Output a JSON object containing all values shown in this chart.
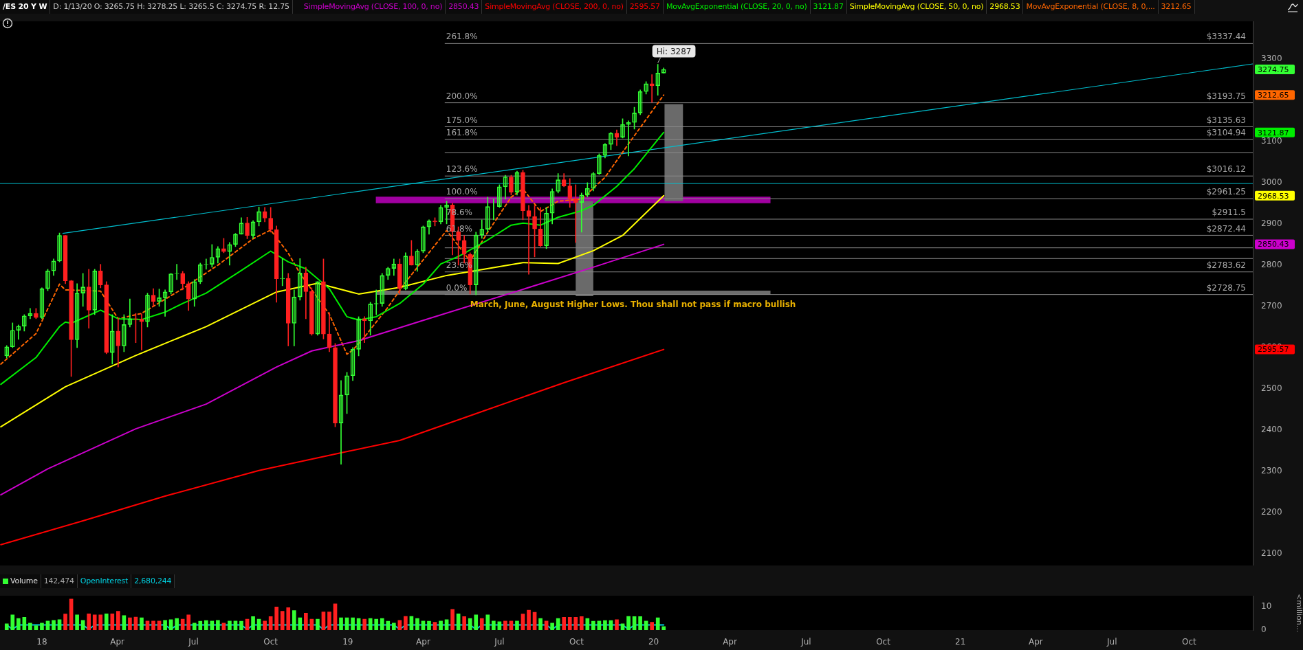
{
  "chart_data": [
    {
      "type": "candlestick",
      "title": "/ES 20 Y W",
      "subtitle": "D: 1/13/20   O: 3265.75   H: 3278.25   L: 3265.5   C: 3274.75   R: 12.75",
      "x": [
        "2017-11-20",
        "2017-11-27",
        "2017-12-04",
        "2017-12-11",
        "2017-12-18",
        "2017-12-25",
        "2018-01-01",
        "2018-01-08",
        "2018-01-15",
        "2018-01-22",
        "2018-01-29",
        "2018-02-05",
        "2018-02-12",
        "2018-02-19",
        "2018-02-26",
        "2018-03-05",
        "2018-03-12",
        "2018-03-19",
        "2018-03-26",
        "2018-04-02",
        "2018-04-09",
        "2018-04-16",
        "2018-04-23",
        "2018-04-30",
        "2018-05-07",
        "2018-05-14",
        "2018-05-21",
        "2018-05-28",
        "2018-06-04",
        "2018-06-11",
        "2018-06-18",
        "2018-06-25",
        "2018-07-02",
        "2018-07-09",
        "2018-07-16",
        "2018-07-23",
        "2018-07-30",
        "2018-08-06",
        "2018-08-13",
        "2018-08-20",
        "2018-08-27",
        "2018-09-03",
        "2018-09-10",
        "2018-09-17",
        "2018-09-24",
        "2018-10-01",
        "2018-10-08",
        "2018-10-15",
        "2018-10-22",
        "2018-10-29",
        "2018-11-05",
        "2018-11-12",
        "2018-11-19",
        "2018-11-26",
        "2018-12-03",
        "2018-12-10",
        "2018-12-17",
        "2018-12-24",
        "2018-12-31",
        "2019-01-07",
        "2019-01-14",
        "2019-01-21",
        "2019-01-28",
        "2019-02-04",
        "2019-02-11",
        "2019-02-18",
        "2019-02-25",
        "2019-03-04",
        "2019-03-11",
        "2019-03-18",
        "2019-03-25",
        "2019-04-01",
        "2019-04-08",
        "2019-04-15",
        "2019-04-22",
        "2019-04-29",
        "2019-05-06",
        "2019-05-13",
        "2019-05-20",
        "2019-05-27",
        "2019-06-03",
        "2019-06-10",
        "2019-06-17",
        "2019-06-24",
        "2019-07-01",
        "2019-07-08",
        "2019-07-15",
        "2019-07-22",
        "2019-07-29",
        "2019-08-05",
        "2019-08-12",
        "2019-08-19",
        "2019-08-26",
        "2019-09-02",
        "2019-09-09",
        "2019-09-16",
        "2019-09-23",
        "2019-09-30",
        "2019-10-07",
        "2019-10-14",
        "2019-10-21",
        "2019-10-28",
        "2019-11-04",
        "2019-11-11",
        "2019-11-18",
        "2019-11-25",
        "2019-12-02",
        "2019-12-09",
        "2019-12-16",
        "2019-12-23",
        "2019-12-30",
        "2020-01-06",
        "2020-01-13"
      ],
      "ohlc": [
        [
          2580,
          2605,
          2575,
          2602
        ],
        [
          2602,
          2660,
          2600,
          2642
        ],
        [
          2642,
          2655,
          2620,
          2652
        ],
        [
          2652,
          2680,
          2640,
          2677
        ],
        [
          2677,
          2695,
          2670,
          2683
        ],
        [
          2683,
          2695,
          2670,
          2673
        ],
        [
          2673,
          2745,
          2670,
          2743
        ],
        [
          2743,
          2790,
          2738,
          2786
        ],
        [
          2786,
          2815,
          2775,
          2810
        ],
        [
          2810,
          2878,
          2808,
          2872
        ],
        [
          2872,
          2872,
          2755,
          2762
        ],
        [
          2762,
          2763,
          2530,
          2619
        ],
        [
          2619,
          2755,
          2600,
          2732
        ],
        [
          2732,
          2780,
          2700,
          2747
        ],
        [
          2747,
          2790,
          2647,
          2691
        ],
        [
          2691,
          2790,
          2680,
          2786
        ],
        [
          2786,
          2802,
          2745,
          2752
        ],
        [
          2752,
          2760,
          2585,
          2588
        ],
        [
          2588,
          2680,
          2560,
          2640
        ],
        [
          2640,
          2672,
          2553,
          2604
        ],
        [
          2604,
          2680,
          2590,
          2656
        ],
        [
          2656,
          2718,
          2650,
          2670
        ],
        [
          2670,
          2683,
          2612,
          2669
        ],
        [
          2669,
          2682,
          2594,
          2663
        ],
        [
          2663,
          2732,
          2650,
          2727
        ],
        [
          2727,
          2743,
          2700,
          2712
        ],
        [
          2712,
          2742,
          2700,
          2721
        ],
        [
          2721,
          2740,
          2676,
          2735
        ],
        [
          2735,
          2780,
          2730,
          2779
        ],
        [
          2779,
          2802,
          2765,
          2780
        ],
        [
          2780,
          2785,
          2740,
          2755
        ],
        [
          2755,
          2760,
          2690,
          2718
        ],
        [
          2718,
          2765,
          2700,
          2760
        ],
        [
          2760,
          2805,
          2755,
          2801
        ],
        [
          2801,
          2815,
          2790,
          2802
        ],
        [
          2802,
          2850,
          2795,
          2819
        ],
        [
          2819,
          2845,
          2805,
          2840
        ],
        [
          2840,
          2865,
          2830,
          2833
        ],
        [
          2833,
          2855,
          2800,
          2850
        ],
        [
          2850,
          2877,
          2845,
          2875
        ],
        [
          2875,
          2915,
          2875,
          2902
        ],
        [
          2902,
          2916,
          2864,
          2872
        ],
        [
          2872,
          2908,
          2865,
          2905
        ],
        [
          2905,
          2941,
          2895,
          2930
        ],
        [
          2930,
          2940,
          2905,
          2914
        ],
        [
          2914,
          2940,
          2880,
          2886
        ],
        [
          2886,
          2895,
          2710,
          2767
        ],
        [
          2767,
          2816,
          2750,
          2768
        ],
        [
          2768,
          2780,
          2604,
          2659
        ],
        [
          2659,
          2740,
          2604,
          2723
        ],
        [
          2723,
          2816,
          2715,
          2781
        ],
        [
          2781,
          2795,
          2670,
          2736
        ],
        [
          2736,
          2745,
          2630,
          2633
        ],
        [
          2633,
          2760,
          2630,
          2760
        ],
        [
          2760,
          2815,
          2621,
          2633
        ],
        [
          2633,
          2685,
          2590,
          2600
        ],
        [
          2600,
          2610,
          2408,
          2417
        ],
        [
          2417,
          2520,
          2317,
          2485
        ],
        [
          2485,
          2540,
          2440,
          2532
        ],
        [
          2532,
          2600,
          2520,
          2596
        ],
        [
          2596,
          2675,
          2580,
          2670
        ],
        [
          2670,
          2675,
          2612,
          2665
        ],
        [
          2665,
          2710,
          2630,
          2706
        ],
        [
          2706,
          2740,
          2680,
          2707
        ],
        [
          2707,
          2780,
          2700,
          2775
        ],
        [
          2775,
          2795,
          2765,
          2792
        ],
        [
          2792,
          2815,
          2775,
          2803
        ],
        [
          2803,
          2815,
          2730,
          2743
        ],
        [
          2743,
          2830,
          2740,
          2822
        ],
        [
          2822,
          2860,
          2800,
          2800
        ],
        [
          2800,
          2838,
          2785,
          2834
        ],
        [
          2834,
          2895,
          2830,
          2893
        ],
        [
          2893,
          2910,
          2875,
          2907
        ],
        [
          2907,
          2915,
          2895,
          2905
        ],
        [
          2905,
          2945,
          2900,
          2940
        ],
        [
          2940,
          2955,
          2900,
          2946
        ],
        [
          2946,
          2950,
          2825,
          2881
        ],
        [
          2881,
          2893,
          2800,
          2860
        ],
        [
          2860,
          2872,
          2805,
          2826
        ],
        [
          2826,
          2830,
          2730,
          2752
        ],
        [
          2752,
          2880,
          2728,
          2873
        ],
        [
          2873,
          2910,
          2865,
          2887
        ],
        [
          2887,
          2965,
          2880,
          2942
        ],
        [
          2942,
          2960,
          2910,
          2942
        ],
        [
          2942,
          2995,
          2940,
          2990
        ],
        [
          2990,
          3018,
          2960,
          3014
        ],
        [
          3014,
          3018,
          2970,
          2977
        ],
        [
          2977,
          3028,
          2970,
          3025
        ],
        [
          3025,
          3030,
          2910,
          2932
        ],
        [
          2932,
          2945,
          2778,
          2918
        ],
        [
          2918,
          2945,
          2820,
          2888
        ],
        [
          2888,
          2940,
          2845,
          2847
        ],
        [
          2847,
          2940,
          2840,
          2926
        ],
        [
          2926,
          2985,
          2900,
          2979
        ],
        [
          2979,
          3022,
          2975,
          3007
        ],
        [
          3007,
          3022,
          2990,
          2992
        ],
        [
          2992,
          3010,
          2940,
          2961
        ],
        [
          2961,
          2995,
          2855,
          2952
        ],
        [
          2952,
          2975,
          2880,
          2970
        ],
        [
          2970,
          3000,
          2965,
          2986
        ],
        [
          2986,
          3025,
          2980,
          3022
        ],
        [
          3022,
          3070,
          3020,
          3066
        ],
        [
          3066,
          3095,
          3060,
          3093
        ],
        [
          3093,
          3122,
          3080,
          3120
        ],
        [
          3120,
          3128,
          3090,
          3110
        ],
        [
          3110,
          3155,
          3108,
          3141
        ],
        [
          3141,
          3150,
          3065,
          3146
        ],
        [
          3146,
          3183,
          3130,
          3169
        ],
        [
          3169,
          3225,
          3165,
          3221
        ],
        [
          3221,
          3245,
          3215,
          3240
        ],
        [
          3240,
          3262,
          3195,
          3235
        ],
        [
          3235,
          3287,
          3212,
          3266
        ],
        [
          3265.75,
          3278.25,
          3265.5,
          3274.75
        ]
      ],
      "colors": [
        "#33ff33",
        "#33ff33",
        "#33ff33",
        "#33ff33",
        "#33ff33",
        "#ff2020",
        "#33ff33",
        "#33ff33",
        "#33ff33",
        "#33ff33",
        "#ff2020",
        "#ff2020",
        "#33ff33",
        "#33ff33",
        "#ff2020",
        "#33ff33",
        "#ff2020",
        "#ff2020",
        "#33ff33",
        "#ff2020",
        "#33ff33",
        "#33ff33",
        "#ff2020",
        "#ff2020",
        "#33ff33",
        "#ff2020",
        "#33ff33",
        "#33ff33",
        "#33ff33",
        "#33ff33",
        "#ff2020",
        "#ff2020",
        "#33ff33",
        "#33ff33",
        "#33ff33",
        "#33ff33",
        "#33ff33",
        "#ff2020",
        "#33ff33",
        "#33ff33",
        "#33ff33",
        "#ff2020",
        "#33ff33",
        "#33ff33",
        "#ff2020",
        "#ff2020",
        "#ff2020",
        "#33ff33",
        "#ff2020",
        "#33ff33",
        "#33ff33",
        "#ff2020",
        "#ff2020",
        "#33ff33",
        "#ff2020",
        "#ff2020",
        "#ff2020",
        "#33ff33",
        "#33ff33",
        "#33ff33",
        "#33ff33",
        "#ff2020",
        "#33ff33",
        "#33ff33",
        "#33ff33",
        "#33ff33",
        "#33ff33",
        "#ff2020",
        "#33ff33",
        "#ff2020",
        "#33ff33",
        "#33ff33",
        "#33ff33",
        "#ff2020",
        "#33ff33",
        "#33ff33",
        "#ff2020",
        "#ff2020",
        "#ff2020",
        "#ff2020",
        "#33ff33",
        "#33ff33",
        "#33ff33",
        "#33ff33",
        "#33ff33",
        "#33ff33",
        "#ff2020",
        "#33ff33",
        "#ff2020",
        "#ff2020",
        "#ff2020",
        "#ff2020",
        "#33ff33",
        "#33ff33",
        "#33ff33",
        "#ff2020",
        "#ff2020",
        "#ff2020",
        "#33ff33",
        "#33ff33",
        "#33ff33",
        "#33ff33",
        "#33ff33",
        "#33ff33",
        "#ff2020",
        "#33ff33",
        "#33ff33",
        "#33ff33",
        "#33ff33",
        "#33ff33",
        "#ff2020",
        "#33ff33",
        "#33ff33"
      ],
      "series": [
        {
          "name": "SimpleMovingAvg (CLOSE, 100, 0, no)",
          "type": "line",
          "color": "#cc00cc",
          "x": [
            "2017-11-13",
            "2018-01-08",
            "2018-04-23",
            "2018-07-16",
            "2018-10-08",
            "2018-11-19",
            "2019-01-14",
            "2019-04-01",
            "2019-07-08",
            "2019-10-21",
            "2020-01-13"
          ],
          "values": [
            2243,
            2306,
            2403,
            2463,
            2553,
            2592,
            2617,
            2666,
            2728,
            2795,
            2850.43
          ]
        },
        {
          "name": "SimpleMovingAvg (CLOSE, 200, 0, no)",
          "type": "line",
          "color": "#ff0000",
          "x": [
            "2017-11-13",
            "2018-02-19",
            "2018-05-28",
            "2018-09-17",
            "2018-12-24",
            "2019-03-04",
            "2019-06-03",
            "2019-09-16",
            "2020-01-13"
          ],
          "values": [
            2122,
            2180,
            2240,
            2302,
            2345,
            2375,
            2440,
            2515,
            2595.57
          ]
        },
        {
          "name": "MovAvgExponential (CLOSE, 20, 0, no)",
          "type": "line",
          "color": "#00ee00",
          "x": [
            "2017-11-13",
            "2017-12-25",
            "2018-01-22",
            "2018-01-29",
            "2018-02-05",
            "2018-03-12",
            "2018-04-02",
            "2018-04-30",
            "2018-05-28",
            "2018-06-18",
            "2018-07-16",
            "2018-08-27",
            "2018-10-01",
            "2018-10-22",
            "2018-11-12",
            "2018-12-10",
            "2018-12-31",
            "2019-01-14",
            "2019-02-04",
            "2019-03-04",
            "2019-04-01",
            "2019-04-22",
            "2019-05-13",
            "2019-06-17",
            "2019-07-15",
            "2019-07-29",
            "2019-08-19",
            "2019-09-09",
            "2019-10-07",
            "2019-10-21",
            "2019-11-18",
            "2019-12-09",
            "2020-01-13"
          ],
          "values": [
            2511,
            2576,
            2651,
            2662,
            2659,
            2691,
            2670,
            2668,
            2686,
            2707,
            2732,
            2787,
            2834,
            2808,
            2791,
            2743,
            2675,
            2667,
            2675,
            2707,
            2754,
            2803,
            2821,
            2861,
            2897,
            2902,
            2897,
            2916,
            2932,
            2945,
            2991,
            3034,
            3121.87
          ]
        },
        {
          "name": "SimpleMovingAvg (CLOSE, 50, 0, no)",
          "type": "line",
          "color": "#ffff00",
          "x": [
            "2017-11-13",
            "2018-01-29",
            "2018-04-23",
            "2018-07-16",
            "2018-10-08",
            "2018-11-26",
            "2019-01-14",
            "2019-03-04",
            "2019-04-29",
            "2019-07-29",
            "2019-09-09",
            "2019-10-21",
            "2019-11-25",
            "2020-01-13"
          ],
          "values": [
            2408,
            2505,
            2581,
            2651,
            2735,
            2756,
            2730,
            2746,
            2775,
            2806,
            2804,
            2835,
            2872,
            2968.53
          ]
        },
        {
          "name": "MovAvgExponential (CLOSE, 8, 0,...",
          "type": "line",
          "color": "#ff6600",
          "line_style": "dashed",
          "x": [
            "2017-11-13",
            "2017-12-25",
            "2018-01-22",
            "2018-01-29",
            "2018-03-12",
            "2018-04-02",
            "2018-04-30",
            "2018-06-18",
            "2018-07-30",
            "2018-09-10",
            "2018-10-01",
            "2018-10-22",
            "2018-11-05",
            "2018-12-10",
            "2018-12-31",
            "2019-01-07",
            "2019-01-21",
            "2019-02-18",
            "2019-03-11",
            "2019-04-29",
            "2019-05-27",
            "2019-06-17",
            "2019-07-15",
            "2019-07-29",
            "2019-08-19",
            "2019-09-09",
            "2019-10-07",
            "2019-11-04",
            "2019-12-02",
            "2020-01-13"
          ],
          "values": [
            2560,
            2634,
            2754,
            2740,
            2737,
            2670,
            2683,
            2743,
            2800,
            2864,
            2885,
            2829,
            2780,
            2681,
            2584,
            2594,
            2626,
            2698,
            2759,
            2884,
            2810,
            2880,
            2965,
            2985,
            2930,
            2955,
            2960,
            3013,
            3094,
            3212.65
          ]
        },
        {
          "type": "line",
          "color": "#00c0d0",
          "x": [
            "2018-01-26",
            "2021-12-16"
          ],
          "values": [
            2877,
            3288
          ]
        }
      ],
      "ref_lines": [
        {
          "axis": "y",
          "value": 3337.44,
          "label": "$3337.44"
        },
        {
          "axis": "y",
          "value": 3193.75,
          "label": "$3193.75"
        },
        {
          "axis": "y",
          "value": 3135.63,
          "label": "$3135.63"
        },
        {
          "axis": "y",
          "value": 3104.94,
          "label": "$3104.94"
        },
        {
          "axis": "y",
          "value": 3073
        },
        {
          "axis": "y",
          "value": 3016.12,
          "label": "$3016.12"
        },
        {
          "axis": "y",
          "value": 2961.25,
          "label": "$2961.25"
        },
        {
          "axis": "y",
          "value": 2911.5,
          "label": "$2911.5"
        },
        {
          "axis": "y",
          "value": 2872.44,
          "label": "$2872.44"
        },
        {
          "axis": "y",
          "value": 2842
        },
        {
          "axis": "y",
          "value": 2816
        },
        {
          "axis": "y",
          "value": 2783.62,
          "label": "$2783.62"
        },
        {
          "axis": "y",
          "value": 2728.75,
          "label": "$2728.75"
        },
        {
          "axis": "y",
          "value": 2998,
          "color": "#00c0d0"
        }
      ],
      "bands": [
        {
          "axis": "y",
          "from": 2950,
          "to": 2966,
          "color": "#a000a0"
        },
        {
          "axis": "y",
          "from": 2728,
          "to": 2738,
          "color": "#6e6e6e"
        },
        {
          "axis": "x",
          "from": "2019-09-30",
          "to": "2019-10-21",
          "color": "#6a6a6a"
        },
        {
          "axis": "x",
          "from": "2020-01-14",
          "to": "2020-02-05",
          "color": "#6a6a6a"
        }
      ],
      "annotations": [
        "3274.75",
        "2850.43",
        "2595.57",
        "3121.87",
        "2968.53",
        "3212.65",
        {
          "text": "March, June, August Higher Lows. Thou shall not pass if macro bullish",
          "x": "2019-05-27",
          "y": 2703
        },
        {
          "text": "Hi: 3287",
          "x": "2020-01-06",
          "y": 3287
        },
        {
          "text": "261.8%",
          "y": 3337.44
        },
        {
          "text": "200.0%",
          "y": 3193.75
        },
        {
          "text": "175.0%",
          "y": 3135.63
        },
        {
          "text": "161.8%",
          "y": 3104.94
        },
        {
          "text": "123.6%",
          "y": 3016.12
        },
        {
          "text": "100.0%",
          "y": 2961.25
        },
        {
          "text": "78.6%",
          "y": 2911.5
        },
        {
          "text": "61.8%",
          "y": 2872.44
        },
        {
          "text": "23.6%",
          "y": 2783.62
        },
        {
          "text": "0.0%",
          "y": 2728.75
        }
      ],
      "xlim": [
        "2017-11-12",
        "2021-12-16"
      ],
      "ylim": [
        2072,
        3391
      ],
      "yticks": [
        2100,
        2200,
        2300,
        2400,
        2500,
        2600,
        2700,
        2800,
        2900,
        3000,
        3100,
        3300
      ],
      "tick_labels": "y",
      "legend": "top right",
      "marker": "none"
    },
    {
      "type": "bar",
      "ylabel": "<million...",
      "x": [
        "2017-11-20",
        "2017-11-27",
        "2017-12-04",
        "2017-12-11",
        "2017-12-18",
        "2017-12-25",
        "2018-01-01",
        "2018-01-08",
        "2018-01-15",
        "2018-01-22",
        "2018-01-29",
        "2018-02-05",
        "2018-02-12",
        "2018-02-19",
        "2018-02-26",
        "2018-03-05",
        "2018-03-12",
        "2018-03-19",
        "2018-03-26",
        "2018-04-02",
        "2018-04-09",
        "2018-04-16",
        "2018-04-23",
        "2018-04-30",
        "2018-05-07",
        "2018-05-14",
        "2018-05-21",
        "2018-05-28",
        "2018-06-04",
        "2018-06-11",
        "2018-06-18",
        "2018-06-25",
        "2018-07-02",
        "2018-07-09",
        "2018-07-16",
        "2018-07-23",
        "2018-07-30",
        "2018-08-06",
        "2018-08-13",
        "2018-08-20",
        "2018-08-27",
        "2018-09-03",
        "2018-09-10",
        "2018-09-17",
        "2018-09-24",
        "2018-10-01",
        "2018-10-08",
        "2018-10-15",
        "2018-10-22",
        "2018-10-29",
        "2018-11-05",
        "2018-11-12",
        "2018-11-19",
        "2018-11-26",
        "2018-12-03",
        "2018-12-10",
        "2018-12-17",
        "2018-12-24",
        "2018-12-31",
        "2019-01-07",
        "2019-01-14",
        "2019-01-21",
        "2019-01-28",
        "2019-02-04",
        "2019-02-11",
        "2019-02-18",
        "2019-02-25",
        "2019-03-04",
        "2019-03-11",
        "2019-03-18",
        "2019-03-25",
        "2019-04-01",
        "2019-04-08",
        "2019-04-15",
        "2019-04-22",
        "2019-04-29",
        "2019-05-06",
        "2019-05-13",
        "2019-05-20",
        "2019-05-27",
        "2019-06-03",
        "2019-06-10",
        "2019-06-17",
        "2019-06-24",
        "2019-07-01",
        "2019-07-08",
        "2019-07-15",
        "2019-07-22",
        "2019-07-29",
        "2019-08-05",
        "2019-08-12",
        "2019-08-19",
        "2019-08-26",
        "2019-09-02",
        "2019-09-09",
        "2019-09-16",
        "2019-09-23",
        "2019-09-30",
        "2019-10-07",
        "2019-10-14",
        "2019-10-21",
        "2019-10-28",
        "2019-11-04",
        "2019-11-11",
        "2019-11-18",
        "2019-11-25",
        "2019-12-02",
        "2019-12-09",
        "2019-12-16",
        "2019-12-23",
        "2019-12-30",
        "2020-01-06",
        "2020-01-13"
      ],
      "series": [
        {
          "name": "Volume",
          "values": [
            2.7,
            6.6,
            5.0,
            5.5,
            3.0,
            1.9,
            3.0,
            3.9,
            4.2,
            4.5,
            6.9,
            13.4,
            6.6,
            4.2,
            7.0,
            6.6,
            6.6,
            7.0,
            7.0,
            8.1,
            6.3,
            5.3,
            5.6,
            5.3,
            3.9,
            3.9,
            3.9,
            4.2,
            4.5,
            5.0,
            4.7,
            6.6,
            3.0,
            3.8,
            4.1,
            3.9,
            4.2,
            3.0,
            3.9,
            3.9,
            3.8,
            4.7,
            5.8,
            4.7,
            3.9,
            5.8,
            10.0,
            8.1,
            9.7,
            8.4,
            5.3,
            7.3,
            4.7,
            4.7,
            7.8,
            7.8,
            11.3,
            5.3,
            5.3,
            5.3,
            5.0,
            4.7,
            5.0,
            4.7,
            5.0,
            3.8,
            3.0,
            4.2,
            5.9,
            5.9,
            5.0,
            3.9,
            3.8,
            3.4,
            3.9,
            4.5,
            8.9,
            7.0,
            5.8,
            5.0,
            6.6,
            5.0,
            6.6,
            3.9,
            3.6,
            3.9,
            3.9,
            3.9,
            6.9,
            8.6,
            7.7,
            5.0,
            3.9,
            3.0,
            5.0,
            5.5,
            5.5,
            5.5,
            5.8,
            5.0,
            3.8,
            3.9,
            4.1,
            4.1,
            4.5,
            2.7,
            5.9,
            5.8,
            5.8,
            3.9,
            3.4,
            5.3,
            1.5
          ],
          "colors": [
            "#33ff33",
            "#33ff33",
            "#33ff33",
            "#33ff33",
            "#33ff33",
            "#33ff33",
            "#33ff33",
            "#33ff33",
            "#33ff33",
            "#33ff33",
            "#ff2020",
            "#ff2020",
            "#33ff33",
            "#33ff33",
            "#ff2020",
            "#ff2020",
            "#ff2020",
            "#33ff33",
            "#ff2020",
            "#ff2020",
            "#33ff33",
            "#ff2020",
            "#ff2020",
            "#33ff33",
            "#ff2020",
            "#ff2020",
            "#ff2020",
            "#33ff33",
            "#33ff33",
            "#33ff33",
            "#ff2020",
            "#ff2020",
            "#33ff33",
            "#33ff33",
            "#33ff33",
            "#33ff33",
            "#33ff33",
            "#ff2020",
            "#33ff33",
            "#33ff33",
            "#33ff33",
            "#ff2020",
            "#33ff33",
            "#33ff33",
            "#ff2020",
            "#ff2020",
            "#ff2020",
            "#ff2020",
            "#ff2020",
            "#33ff33",
            "#33ff33",
            "#ff2020",
            "#ff2020",
            "#33ff33",
            "#ff2020",
            "#ff2020",
            "#ff2020",
            "#33ff33",
            "#33ff33",
            "#33ff33",
            "#33ff33",
            "#ff2020",
            "#33ff33",
            "#33ff33",
            "#33ff33",
            "#33ff33",
            "#33ff33",
            "#ff2020",
            "#ff2020",
            "#33ff33",
            "#33ff33",
            "#33ff33",
            "#33ff33",
            "#ff2020",
            "#33ff33",
            "#33ff33",
            "#ff2020",
            "#33ff33",
            "#ff2020",
            "#33ff33",
            "#33ff33",
            "#ff2020",
            "#33ff33",
            "#33ff33",
            "#33ff33",
            "#ff2020",
            "#ff2020",
            "#33ff33",
            "#ff2020",
            "#ff2020",
            "#ff2020",
            "#33ff33",
            "#ff2020",
            "#33ff33",
            "#33ff33",
            "#ff2020",
            "#ff2020",
            "#ff2020",
            "#ff2020",
            "#33ff33",
            "#33ff33",
            "#33ff33",
            "#33ff33",
            "#33ff33",
            "#ff2020",
            "#33ff33",
            "#33ff33",
            "#33ff33",
            "#33ff33",
            "#33ff33",
            "#ff2020",
            "#33ff33",
            "#33ff33"
          ]
        },
        {
          "name": "OpenInterest",
          "type": "line",
          "color": "#00d0e0",
          "values": [
            2.2,
            0.3,
            2.2,
            2.2,
            2.2,
            2.2,
            2.2,
            2.2,
            2.2,
            2.2,
            2.2,
            2.2,
            2.2,
            2.2,
            0.3,
            2.2,
            2.2,
            2.2,
            2.2,
            2.2,
            2.2,
            2.2,
            2.2,
            2.2,
            2.2,
            2.2,
            2.2,
            2.2,
            0.3,
            2.2,
            2.2,
            2.2,
            2.2,
            2.2,
            2.2,
            2.2,
            2.2,
            2.2,
            2.2,
            2.2,
            2.2,
            0.3,
            2.2,
            2.2,
            2.2,
            2.2,
            2.2,
            2.2,
            2.2,
            2.2,
            2.2,
            2.2,
            2.2,
            2.2,
            0.3,
            2.2,
            2.2,
            2.2,
            2.2,
            2.2,
            2.2,
            2.2,
            2.2,
            2.2,
            2.2,
            2.2,
            2.2,
            0.3,
            2.2,
            2.2,
            2.2,
            2.2,
            2.2,
            2.2,
            2.2,
            2.2,
            2.2,
            2.2,
            2.2,
            2.2,
            0.3,
            2.2,
            2.2,
            2.2,
            2.2,
            2.2,
            2.2,
            2.2,
            2.2,
            2.2,
            2.2,
            2.2,
            2.2,
            0.3,
            2.2,
            2.2,
            2.2,
            2.2,
            2.2,
            2.2,
            2.2,
            2.2,
            2.2,
            2.2,
            2.2,
            2.2,
            0.3,
            2.2,
            2.2,
            2.2,
            2.2,
            2.2,
            2.2
          ]
        }
      ],
      "annotations": [
        "142,474",
        "2,680,244"
      ],
      "xlim": [
        "2017-11-12",
        "2021-12-16"
      ],
      "xticks": [
        {
          "value": "2018-01-01",
          "label": "18"
        },
        {
          "value": "2018-04-01",
          "label": "Apr"
        },
        {
          "value": "2018-07-01",
          "label": "Jul"
        },
        {
          "value": "2018-10-01",
          "label": "Oct"
        },
        {
          "value": "2019-01-01",
          "label": "19"
        },
        {
          "value": "2019-04-01",
          "label": "Apr"
        },
        {
          "value": "2019-07-01",
          "label": "Jul"
        },
        {
          "value": "2019-10-01",
          "label": "Oct"
        },
        {
          "value": "2020-01-01",
          "label": "20"
        },
        {
          "value": "2020-04-01",
          "label": "Apr"
        },
        {
          "value": "2020-07-01",
          "label": "Jul"
        },
        {
          "value": "2020-10-01",
          "label": "Oct"
        },
        {
          "value": "2021-01-01",
          "label": "21"
        },
        {
          "value": "2021-04-01",
          "label": "Apr"
        },
        {
          "value": "2021-07-01",
          "label": "Jul"
        },
        {
          "value": "2021-10-01",
          "label": "Oct"
        }
      ],
      "ylim": [
        0,
        14.75
      ],
      "yticks": [
        0,
        10
      ],
      "legend": "top left",
      "marker": "none"
    }
  ]
}
